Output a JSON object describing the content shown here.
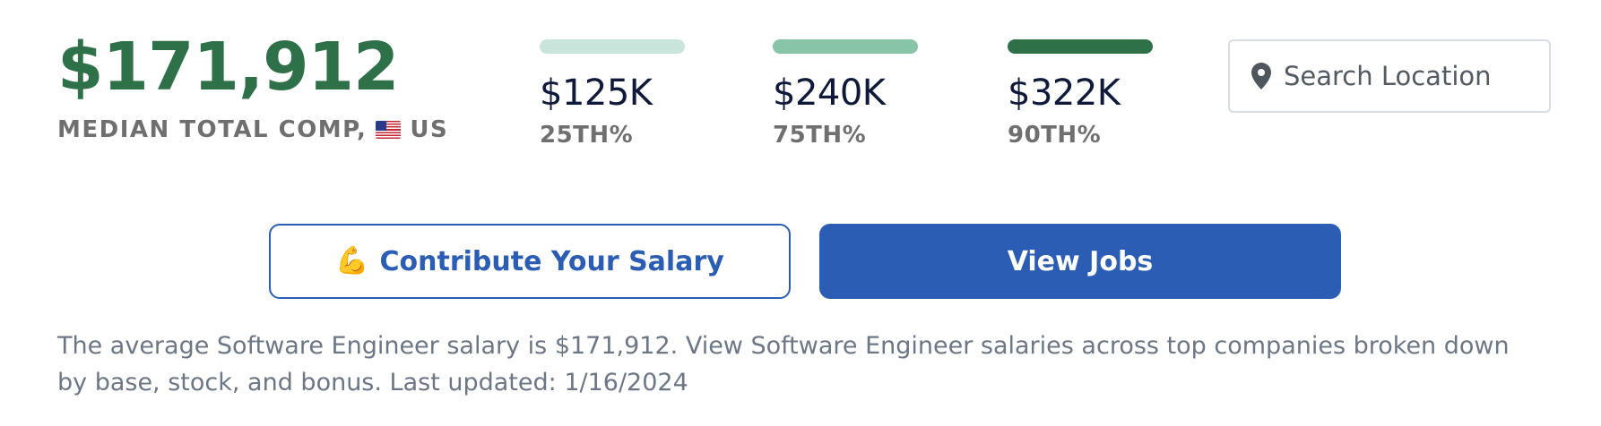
{
  "median": {
    "value": "$171,912",
    "label": "MEDIAN TOTAL COMP,",
    "country": "US"
  },
  "percentiles": [
    {
      "value": "$125K",
      "label": "25TH%",
      "color": "#c9e5db"
    },
    {
      "value": "$240K",
      "label": "75TH%",
      "color": "#88c4a8"
    },
    {
      "value": "$322K",
      "label": "90TH%",
      "color": "#2e7047"
    }
  ],
  "search": {
    "placeholder": "Search Location",
    "icon": "location-pin-icon"
  },
  "buttons": {
    "contribute_emoji": "💪",
    "contribute_label": "Contribute Your Salary",
    "jobs_label": "View Jobs"
  },
  "description": "The average Software Engineer salary is $171,912. View Software Engineer salaries across top companies broken down by base, stock, and bonus. Last updated: 1/16/2024",
  "colors": {
    "accent_green": "#2e7047",
    "primary_blue": "#2a5db3"
  }
}
